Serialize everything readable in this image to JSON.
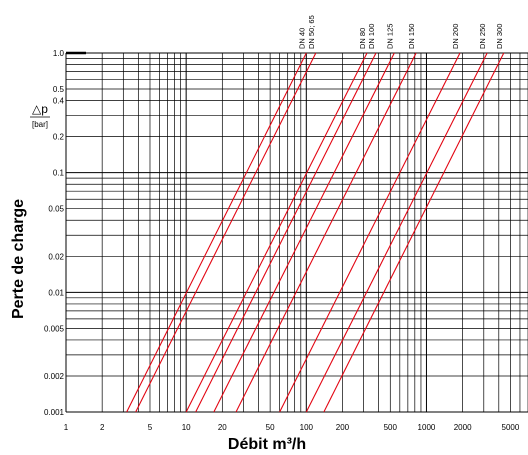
{
  "chart_data": {
    "type": "line",
    "title": "",
    "xlabel": "Débit m³/h",
    "ylabel": "Perte de charge",
    "ylabel_symbol": "△p",
    "ylabel_unit": "[bar]",
    "x_scale": "log",
    "y_scale": "log",
    "xlim": [
      1,
      7000
    ],
    "ylim": [
      0.001,
      1.0
    ],
    "grid": true,
    "x_tick_labels": [
      "1",
      "2",
      "5",
      "10",
      "20",
      "50",
      "100",
      "200",
      "500",
      "1000",
      "2000",
      "5000"
    ],
    "x_tick_values": [
      1,
      2,
      5,
      10,
      20,
      50,
      100,
      200,
      500,
      1000,
      2000,
      5000
    ],
    "y_tick_labels": [
      "1.0",
      "0.5",
      "0.4",
      "0.2",
      "0.1",
      "0.05",
      "0.02",
      "0.01",
      "0.005",
      "0.002",
      "0.001"
    ],
    "y_tick_values": [
      1.0,
      0.5,
      0.4,
      0.2,
      0.1,
      0.05,
      0.02,
      0.01,
      0.005,
      0.002,
      0.001
    ],
    "series": [
      {
        "name": "DN 40",
        "x": [
          3.2,
          100
        ],
        "y": [
          0.001,
          1.0
        ]
      },
      {
        "name": "DN 50; 65",
        "x": [
          3.8,
          120
        ],
        "y": [
          0.001,
          1.0
        ]
      },
      {
        "name": "DN 80",
        "x": [
          10,
          320
        ],
        "y": [
          0.001,
          1.0
        ]
      },
      {
        "name": "DN 100",
        "x": [
          12,
          380
        ],
        "y": [
          0.001,
          1.0
        ]
      },
      {
        "name": "DN 125",
        "x": [
          17,
          540
        ],
        "y": [
          0.001,
          1.0
        ]
      },
      {
        "name": "DN 150",
        "x": [
          26,
          820
        ],
        "y": [
          0.001,
          1.0
        ]
      },
      {
        "name": "DN 200",
        "x": [
          60,
          1900
        ],
        "y": [
          0.001,
          1.0
        ]
      },
      {
        "name": "DN 250",
        "x": [
          100,
          3200
        ],
        "y": [
          0.001,
          1.0
        ]
      },
      {
        "name": "DN 300",
        "x": [
          140,
          4400
        ],
        "y": [
          0.001,
          1.0
        ]
      }
    ],
    "line_color": "#e30613",
    "grid_color": "#000000"
  }
}
